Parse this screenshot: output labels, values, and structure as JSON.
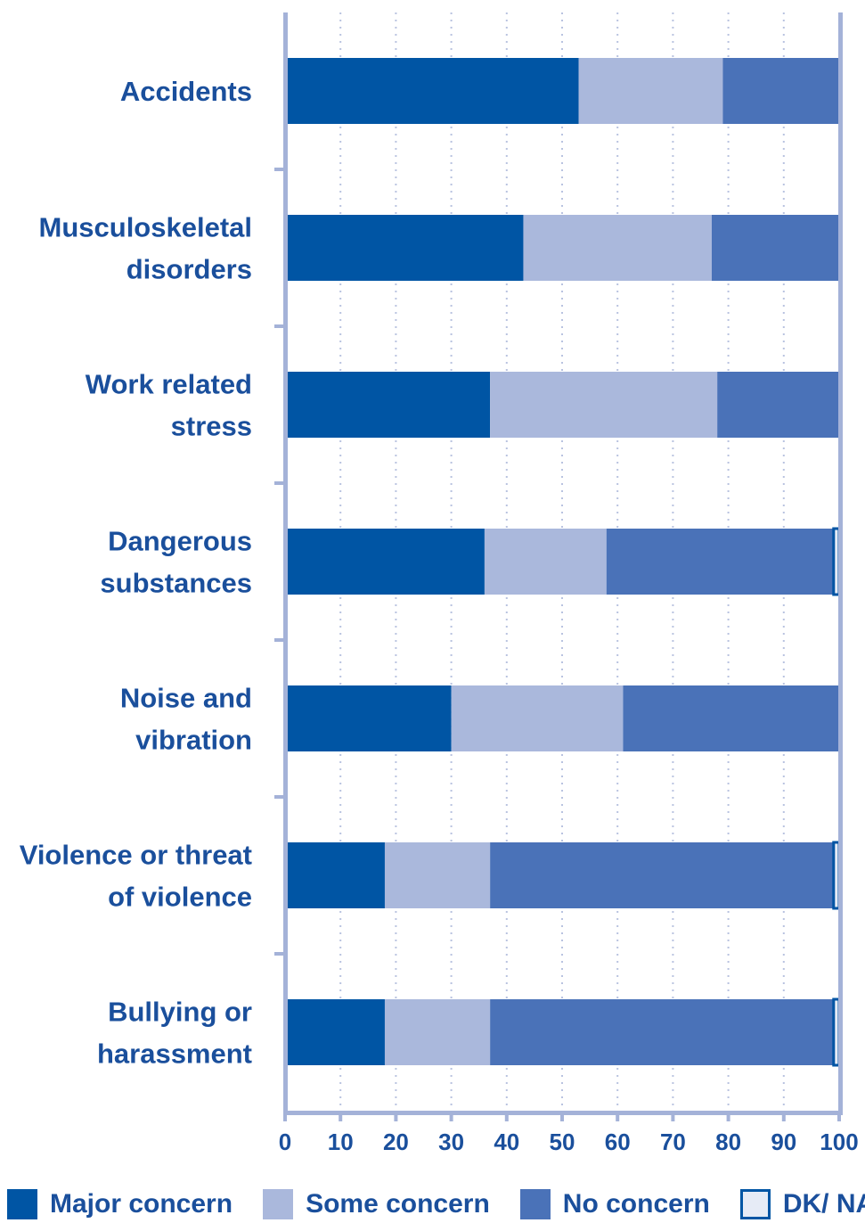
{
  "chart_data": {
    "type": "bar",
    "orientation": "horizontal",
    "stacked": true,
    "categories": [
      [
        "Accidents"
      ],
      [
        "Musculoskeletal",
        "disorders"
      ],
      [
        "Work related",
        "stress"
      ],
      [
        "Dangerous",
        "substances"
      ],
      [
        "Noise and",
        "vibration"
      ],
      [
        "Violence or threat",
        "of violence"
      ],
      [
        "Bullying or",
        "harassment"
      ]
    ],
    "series": [
      {
        "name": "Major concern",
        "color": "#0055a4",
        "values": [
          53,
          43,
          37,
          36,
          30,
          18,
          18
        ]
      },
      {
        "name": "Some concern",
        "color": "#aab8dc",
        "values": [
          26,
          34,
          41,
          22,
          31,
          19,
          19
        ]
      },
      {
        "name": "No concern",
        "color": "#4a72b8",
        "values": [
          21,
          23,
          22,
          41,
          39,
          62,
          62
        ]
      },
      {
        "name": "DK/ NA",
        "color": "#e6ebf6",
        "values": [
          0,
          0,
          0,
          1,
          0,
          1,
          1
        ]
      }
    ],
    "xlim": [
      0,
      100
    ],
    "xticks": [
      0,
      10,
      20,
      30,
      40,
      50,
      60,
      70,
      80,
      90,
      100
    ],
    "grid": true,
    "legend_position": "bottom",
    "axis_color": "#a4b2d8"
  }
}
